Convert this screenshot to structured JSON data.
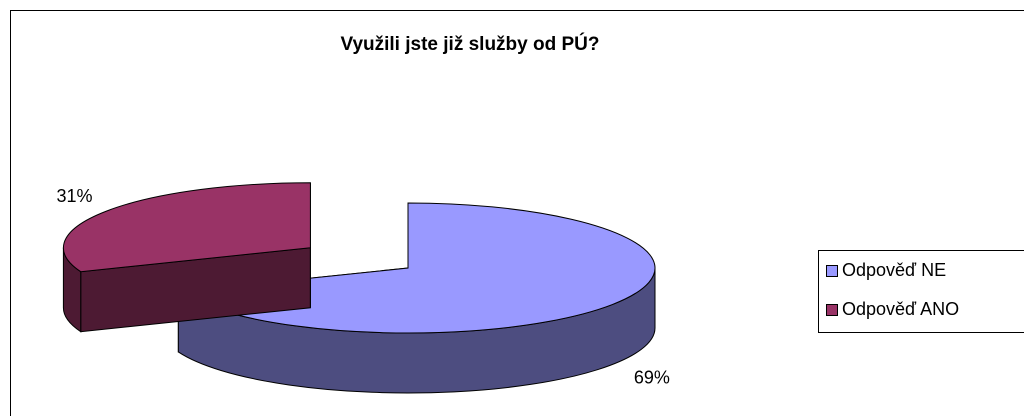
{
  "chart_data": {
    "type": "pie",
    "title": "Využili jste již služby od PÚ?",
    "categories": [
      "Odpověď NE",
      "Odpověď ANO"
    ],
    "values": [
      69,
      31
    ],
    "value_labels": [
      "69%",
      "31%"
    ],
    "colors": [
      "#9999ff",
      "#993366"
    ],
    "legend": "right"
  }
}
